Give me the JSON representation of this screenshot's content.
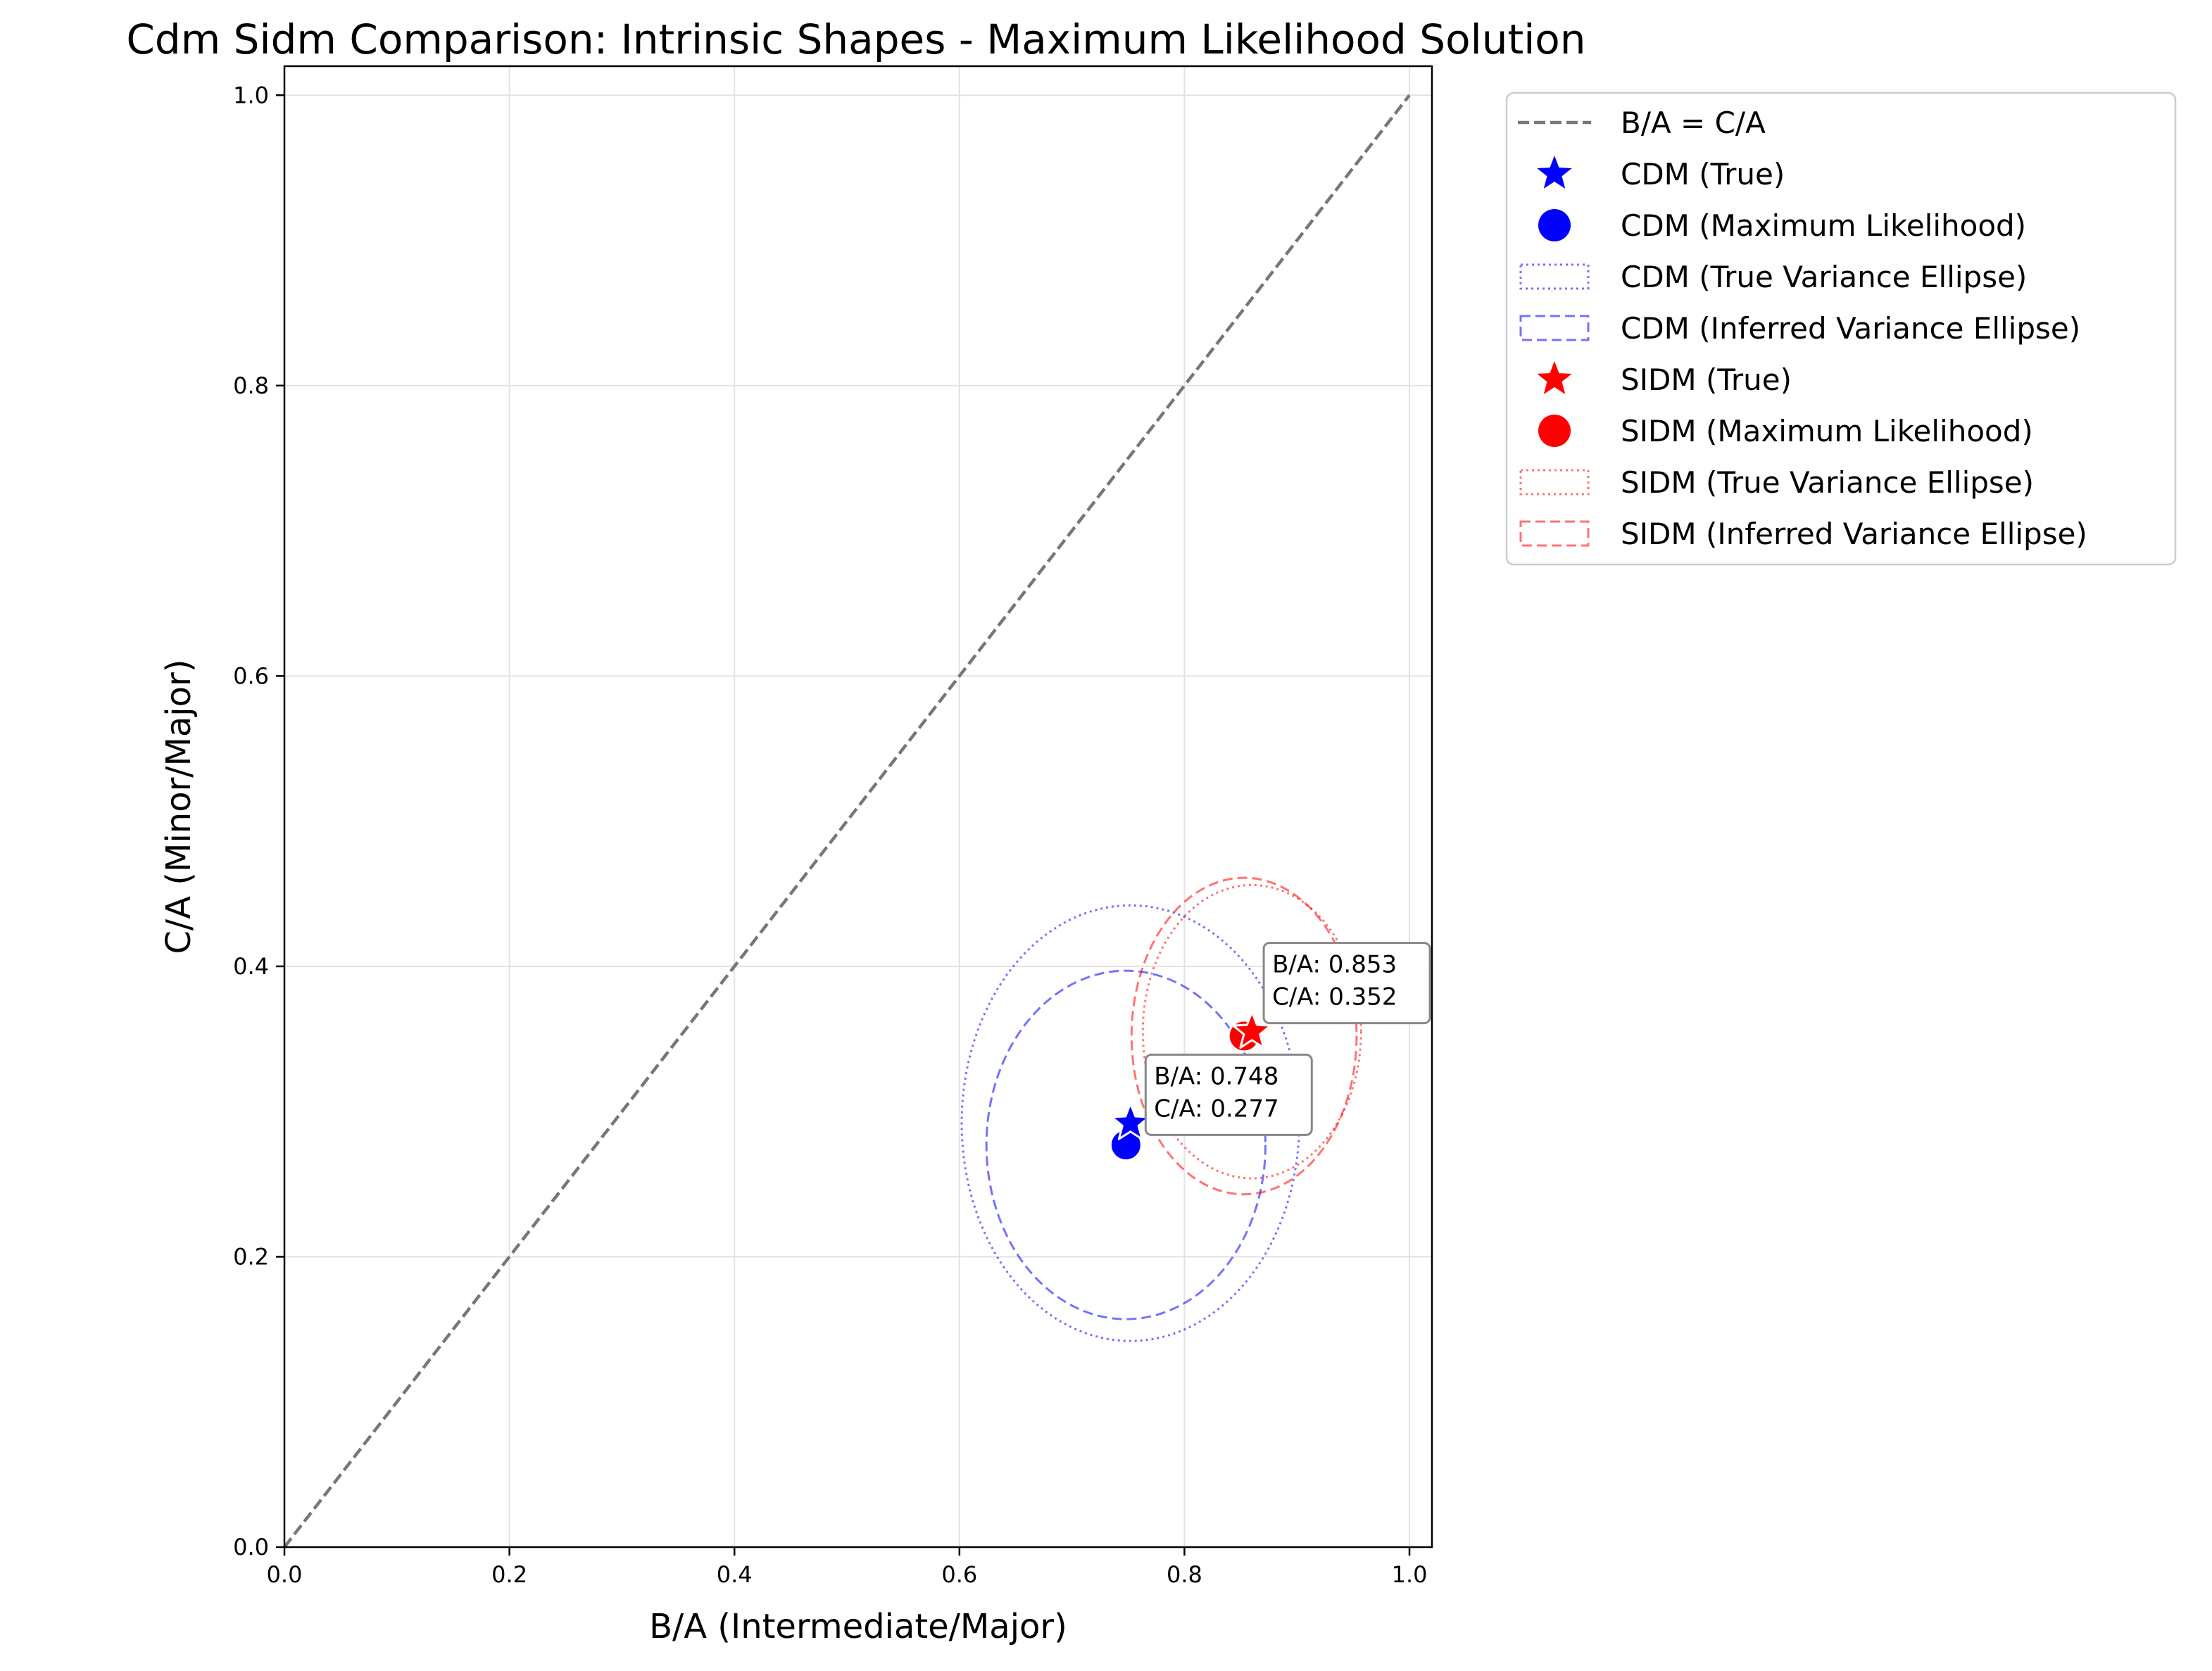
{
  "chart_data": {
    "type": "scatter",
    "title": "Cdm Sidm Comparison: Intrinsic Shapes - Maximum Likelihood Solution",
    "xlabel": "B/A (Intermediate/Major)",
    "ylabel": "C/A (Minor/Major)",
    "xlim": [
      0.0,
      1.02
    ],
    "ylim": [
      0.0,
      1.02
    ],
    "xticks": [
      0.0,
      0.2,
      0.4,
      0.6,
      0.8,
      1.0
    ],
    "yticks": [
      0.0,
      0.2,
      0.4,
      0.6,
      0.8,
      1.0
    ],
    "tick_labels": [
      "0.0",
      "0.2",
      "0.4",
      "0.6",
      "0.8",
      "1.0"
    ],
    "grid": true,
    "legend_position": "outside right, top",
    "reference_line": {
      "name": "B/A = C/A",
      "x": [
        0.0,
        1.0
      ],
      "y": [
        0.0,
        1.0
      ],
      "color": "#777777"
    },
    "series": [
      {
        "name": "CDM (True)",
        "marker": "star",
        "color": "#0000ff",
        "x": 0.752,
        "y": 0.292
      },
      {
        "name": "CDM (Maximum Likelihood)",
        "marker": "circle",
        "color": "#0000ff",
        "x": 0.748,
        "y": 0.277
      },
      {
        "name": "CDM (True Variance Ellipse)",
        "style": "dotted",
        "color": "#0000ff",
        "center": [
          0.752,
          0.292
        ],
        "half_width": 0.15,
        "half_height": 0.15
      },
      {
        "name": "CDM (Inferred Variance Ellipse)",
        "style": "dashed",
        "color": "#0000ff",
        "center": [
          0.748,
          0.277
        ],
        "half_width": 0.124,
        "half_height": 0.12
      },
      {
        "name": "SIDM (True)",
        "marker": "star",
        "color": "#ff0000",
        "x": 0.86,
        "y": 0.355
      },
      {
        "name": "SIDM (Maximum Likelihood)",
        "marker": "circle",
        "color": "#ff0000",
        "x": 0.853,
        "y": 0.352
      },
      {
        "name": "SIDM (True Variance Ellipse)",
        "style": "dotted",
        "color": "#ff0000",
        "center": [
          0.86,
          0.355
        ],
        "half_width": 0.097,
        "half_height": 0.101
      },
      {
        "name": "SIDM (Inferred Variance Ellipse)",
        "style": "dashed",
        "color": "#ff0000",
        "center": [
          0.853,
          0.352
        ],
        "half_width": 0.1,
        "half_height": 0.109
      }
    ],
    "annotations": [
      {
        "lines": [
          "B/A: 0.748",
          "C/A: 0.277"
        ],
        "anchor": [
          0.773,
          0.312
        ]
      },
      {
        "lines": [
          "B/A: 0.853",
          "C/A: 0.352"
        ],
        "anchor": [
          0.878,
          0.389
        ]
      }
    ]
  }
}
